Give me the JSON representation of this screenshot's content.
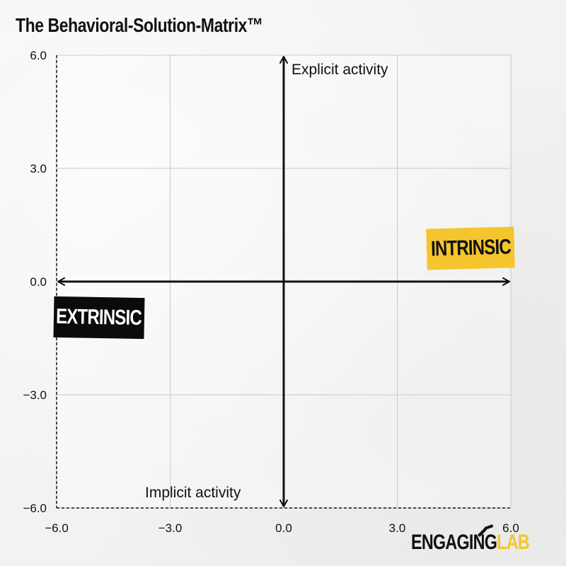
{
  "title": "The Behavioral-Solution-Matrix™",
  "chart_data": {
    "type": "scatter",
    "title": "The Behavioral-Solution-Matrix™",
    "xlim": [
      -6.0,
      6.0
    ],
    "ylim": [
      -6.0,
      6.0
    ],
    "xticks": [
      -6.0,
      -3.0,
      0.0,
      3.0,
      6.0
    ],
    "yticks": [
      6.0,
      3.0,
      0.0,
      -3.0,
      -6.0
    ],
    "xtick_labels": [
      "−6.0",
      "−3.0",
      "0.0",
      "3.0",
      "6.0"
    ],
    "ytick_labels": [
      "6.0",
      "3.0",
      "0.0",
      "−3.0",
      "−6.0"
    ],
    "grid": true,
    "series": []
  },
  "axes": {
    "top_label": "Explicit activity",
    "bottom_label": "Implicit activity"
  },
  "tags": {
    "intrinsic": "INTRINSIC",
    "extrinsic": "EXTRINSIC"
  },
  "logo": {
    "word1": "ENGAGING",
    "word2": "LAB"
  },
  "colors": {
    "accent": "#f4c52d",
    "dark": "#0b0b0b",
    "grid": "#c9c9c9",
    "background": "#f3f3f1"
  }
}
